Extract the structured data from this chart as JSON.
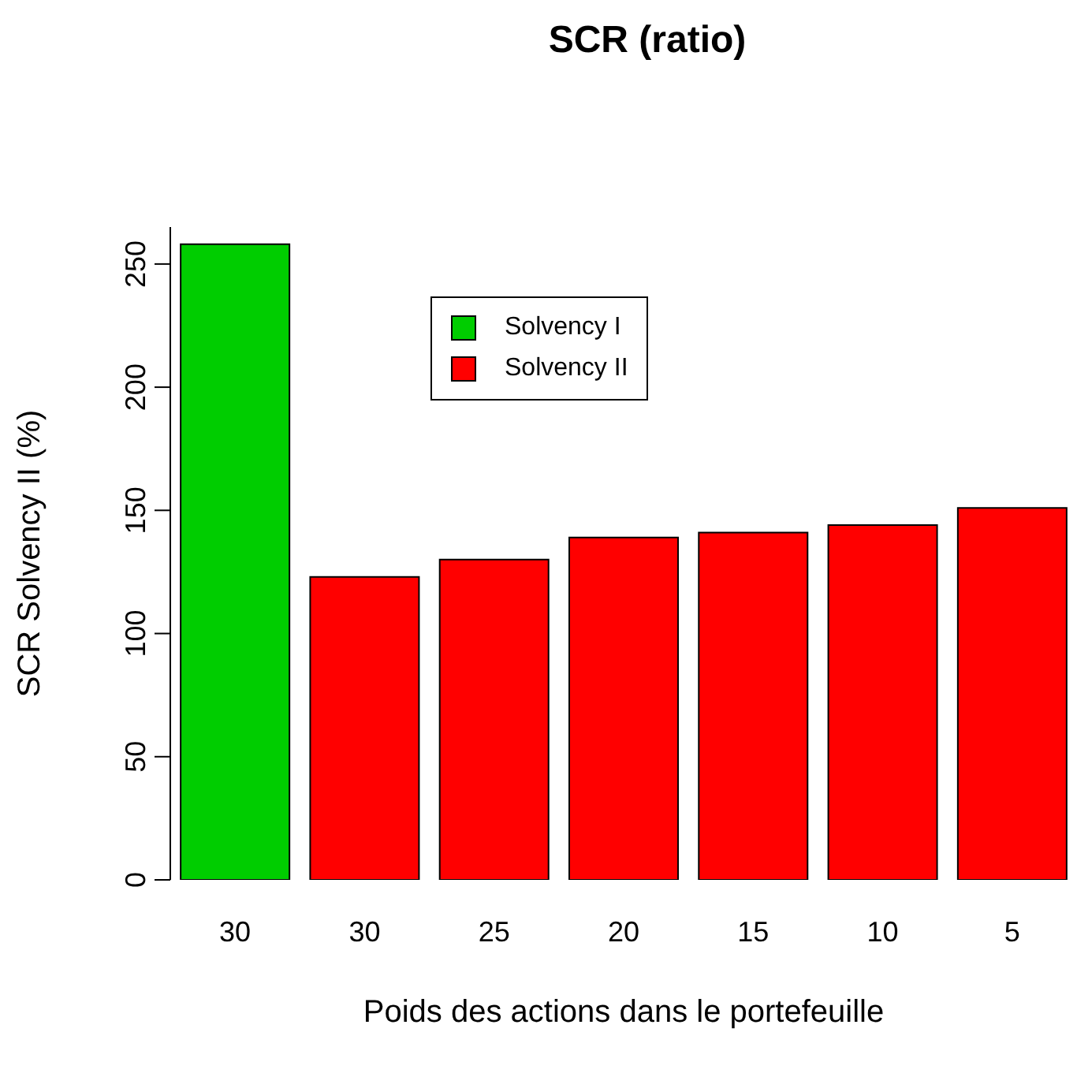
{
  "chart_data": {
    "type": "bar",
    "title": "SCR (ratio)",
    "xlabel": "Poids des actions dans le portefeuille",
    "ylabel": "SCR Solvency II (%)",
    "categories": [
      "30",
      "30",
      "25",
      "20",
      "15",
      "10",
      "5"
    ],
    "series": [
      {
        "name": "Solvency I",
        "color": "#00cd00",
        "values": [
          258,
          null,
          null,
          null,
          null,
          null,
          null
        ]
      },
      {
        "name": "Solvency II",
        "color": "#ff0000",
        "values": [
          null,
          123,
          130,
          139,
          141,
          144,
          151
        ]
      }
    ],
    "stacked": true,
    "ylim": [
      0,
      265
    ],
    "yticks": [
      0,
      50,
      100,
      150,
      200,
      250
    ],
    "grid": false,
    "legend": "top left"
  }
}
